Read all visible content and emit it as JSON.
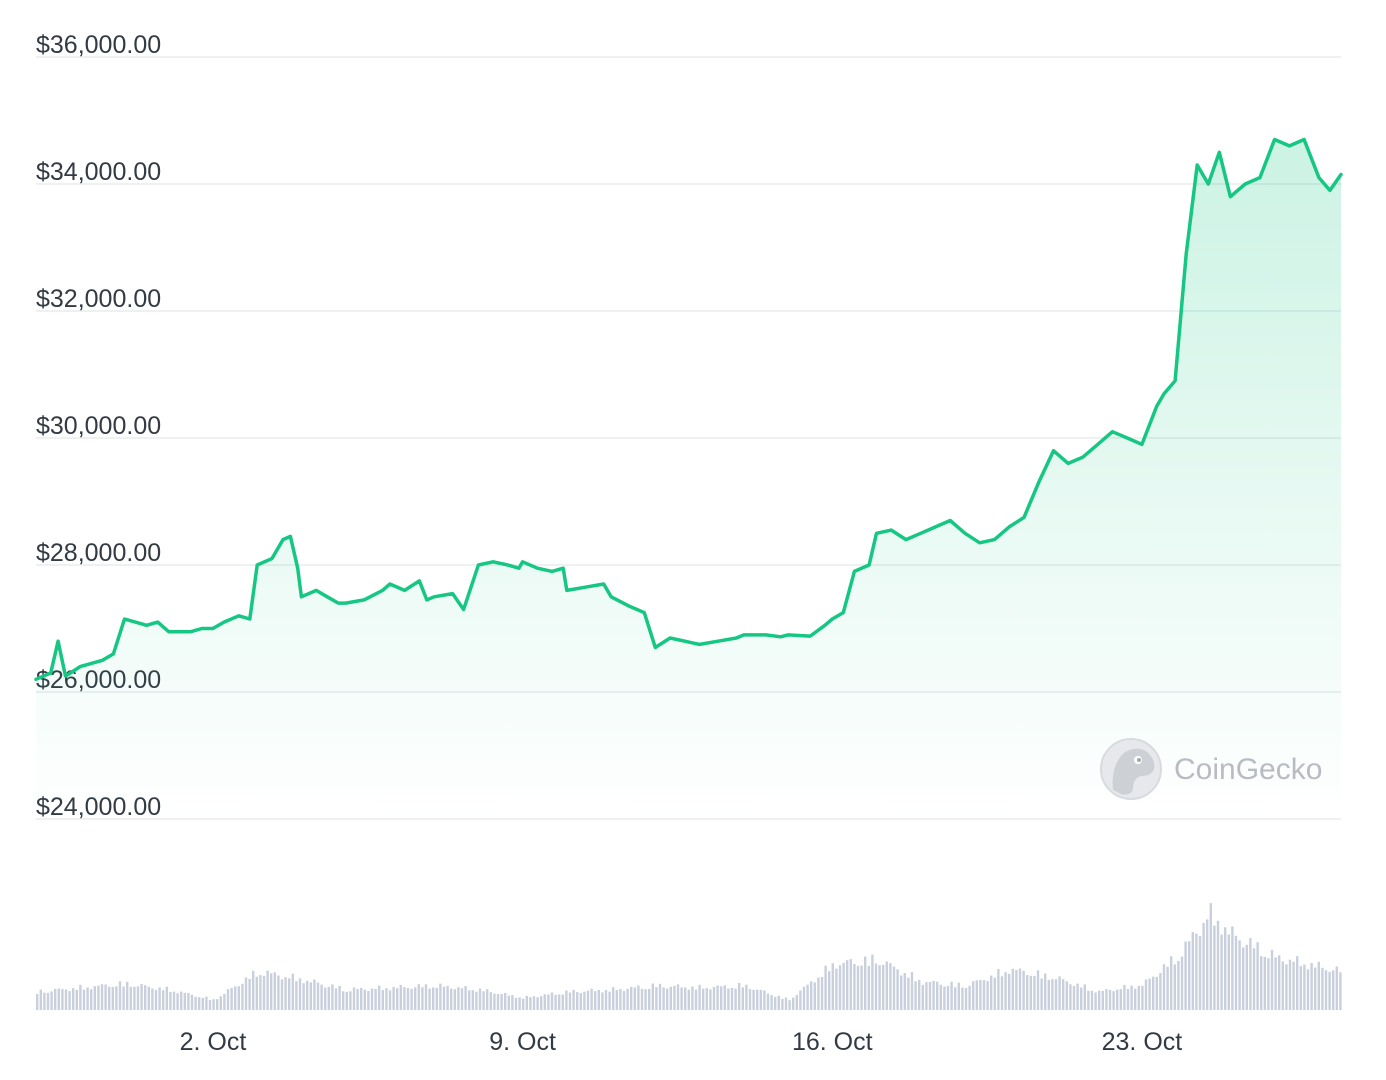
{
  "watermark": {
    "brand": "CoinGecko",
    "icon": "gecko-logo-icon"
  },
  "colors": {
    "line": "#16c784",
    "area_top": "#16c784",
    "volume": "#c9cfdc",
    "grid": "#eef0f2",
    "text": "#333a44"
  },
  "chart_data": [
    {
      "type": "area",
      "title": "",
      "xlabel": "",
      "ylabel": "",
      "ylim": [
        24000,
        36000
      ],
      "yticks": [
        {
          "value": 24000,
          "label": "$24,000.00"
        },
        {
          "value": 26000,
          "label": "$26,000.00"
        },
        {
          "value": 28000,
          "label": "$28,000.00"
        },
        {
          "value": 30000,
          "label": "$30,000.00"
        },
        {
          "value": 32000,
          "label": "$32,000.00"
        },
        {
          "value": 34000,
          "label": "$34,000.00"
        },
        {
          "value": 36000,
          "label": "$36,000.00"
        }
      ],
      "xlim": [
        "2023-09-28",
        "2023-10-27T12:00"
      ],
      "xticks": [
        {
          "value": "2023-10-02",
          "label": "2. Oct"
        },
        {
          "value": "2023-10-09",
          "label": "9. Oct"
        },
        {
          "value": "2023-10-16",
          "label": "16. Oct"
        },
        {
          "value": "2023-10-23",
          "label": "23. Oct"
        }
      ],
      "grid": true,
      "legend": "none",
      "series": [
        {
          "points": [
            [
              "2023-09-28T00:00",
              26200
            ],
            [
              "2023-09-28T08:00",
              26300
            ],
            [
              "2023-09-28T12:00",
              26800
            ],
            [
              "2023-09-28T16:00",
              26250
            ],
            [
              "2023-09-29T00:00",
              26400
            ],
            [
              "2023-09-29T12:00",
              26500
            ],
            [
              "2023-09-29T18:00",
              26600
            ],
            [
              "2023-09-30T00:00",
              27150
            ],
            [
              "2023-09-30T12:00",
              27050
            ],
            [
              "2023-09-30T18:00",
              27100
            ],
            [
              "2023-10-01T00:00",
              26950
            ],
            [
              "2023-10-01T12:00",
              26950
            ],
            [
              "2023-10-01T18:00",
              27000
            ],
            [
              "2023-10-02T00:00",
              27000
            ],
            [
              "2023-10-02T06:00",
              27100
            ],
            [
              "2023-10-02T14:00",
              27200
            ],
            [
              "2023-10-02T20:00",
              27150
            ],
            [
              "2023-10-03T00:00",
              28000
            ],
            [
              "2023-10-03T08:00",
              28100
            ],
            [
              "2023-10-03T14:00",
              28400
            ],
            [
              "2023-10-03T18:00",
              28450
            ],
            [
              "2023-10-03T22:00",
              27950
            ],
            [
              "2023-10-04T00:00",
              27500
            ],
            [
              "2023-10-04T08:00",
              27600
            ],
            [
              "2023-10-04T14:00",
              27500
            ],
            [
              "2023-10-04T20:00",
              27400
            ],
            [
              "2023-10-05T00:00",
              27400
            ],
            [
              "2023-10-05T10:00",
              27450
            ],
            [
              "2023-10-05T20:00",
              27600
            ],
            [
              "2023-10-06T00:00",
              27700
            ],
            [
              "2023-10-06T08:00",
              27600
            ],
            [
              "2023-10-06T16:00",
              27750
            ],
            [
              "2023-10-06T20:00",
              27450
            ],
            [
              "2023-10-07T00:00",
              27500
            ],
            [
              "2023-10-07T10:00",
              27550
            ],
            [
              "2023-10-07T16:00",
              27300
            ],
            [
              "2023-10-08T00:00",
              28000
            ],
            [
              "2023-10-08T08:00",
              28050
            ],
            [
              "2023-10-08T16:00",
              28000
            ],
            [
              "2023-10-08T22:00",
              27950
            ],
            [
              "2023-10-09T00:00",
              28050
            ],
            [
              "2023-10-09T08:00",
              27950
            ],
            [
              "2023-10-09T16:00",
              27900
            ],
            [
              "2023-10-09T22:00",
              27950
            ],
            [
              "2023-10-10T00:00",
              27600
            ],
            [
              "2023-10-10T10:00",
              27650
            ],
            [
              "2023-10-10T20:00",
              27700
            ],
            [
              "2023-10-11T00:00",
              27500
            ],
            [
              "2023-10-11T10:00",
              27350
            ],
            [
              "2023-10-11T18:00",
              27250
            ],
            [
              "2023-10-12T00:00",
              26700
            ],
            [
              "2023-10-12T08:00",
              26850
            ],
            [
              "2023-10-12T16:00",
              26800
            ],
            [
              "2023-10-13T00:00",
              26750
            ],
            [
              "2023-10-13T10:00",
              26800
            ],
            [
              "2023-10-13T20:00",
              26850
            ],
            [
              "2023-10-14T00:00",
              26900
            ],
            [
              "2023-10-14T12:00",
              26900
            ],
            [
              "2023-10-14T20:00",
              26870
            ],
            [
              "2023-10-15T00:00",
              26900
            ],
            [
              "2023-10-15T12:00",
              26880
            ],
            [
              "2023-10-15T20:00",
              27050
            ],
            [
              "2023-10-16T00:00",
              27150
            ],
            [
              "2023-10-16T06:00",
              27250
            ],
            [
              "2023-10-16T12:00",
              27900
            ],
            [
              "2023-10-16T20:00",
              28000
            ],
            [
              "2023-10-17T00:00",
              28500
            ],
            [
              "2023-10-17T08:00",
              28550
            ],
            [
              "2023-10-17T16:00",
              28400
            ],
            [
              "2023-10-18T00:00",
              28500
            ],
            [
              "2023-10-18T08:00",
              28600
            ],
            [
              "2023-10-18T16:00",
              28700
            ],
            [
              "2023-10-19T00:00",
              28500
            ],
            [
              "2023-10-19T08:00",
              28350
            ],
            [
              "2023-10-19T16:00",
              28400
            ],
            [
              "2023-10-20T00:00",
              28600
            ],
            [
              "2023-10-20T08:00",
              28750
            ],
            [
              "2023-10-20T16:00",
              29300
            ],
            [
              "2023-10-21T00:00",
              29800
            ],
            [
              "2023-10-21T08:00",
              29600
            ],
            [
              "2023-10-21T16:00",
              29700
            ],
            [
              "2023-10-22T00:00",
              29900
            ],
            [
              "2023-10-22T08:00",
              30100
            ],
            [
              "2023-10-22T16:00",
              30000
            ],
            [
              "2023-10-23T00:00",
              29900
            ],
            [
              "2023-10-23T08:00",
              30500
            ],
            [
              "2023-10-23T12:00",
              30700
            ],
            [
              "2023-10-23T18:00",
              30900
            ],
            [
              "2023-10-24T00:00",
              32900
            ],
            [
              "2023-10-24T06:00",
              34300
            ],
            [
              "2023-10-24T12:00",
              34000
            ],
            [
              "2023-10-24T18:00",
              34500
            ],
            [
              "2023-10-25T00:00",
              33800
            ],
            [
              "2023-10-25T08:00",
              34000
            ],
            [
              "2023-10-25T16:00",
              34100
            ],
            [
              "2023-10-26T00:00",
              34700
            ],
            [
              "2023-10-26T08:00",
              34600
            ],
            [
              "2023-10-26T16:00",
              34700
            ],
            [
              "2023-10-27T00:00",
              34100
            ],
            [
              "2023-10-27T06:00",
              33900
            ],
            [
              "2023-10-27T12:00",
              34150
            ]
          ]
        }
      ]
    },
    {
      "type": "bar",
      "title": "",
      "xlabel": "",
      "ylabel": "",
      "axis_labels_shown": false,
      "ylim": [
        0,
        100
      ],
      "volume_profile": [
        [
          "2023-09-28T00:00",
          18
        ],
        [
          "2023-09-29T00:00",
          22
        ],
        [
          "2023-09-30T00:00",
          26
        ],
        [
          "2023-10-01T00:00",
          20
        ],
        [
          "2023-10-02T00:00",
          10
        ],
        [
          "2023-10-03T00:00",
          38
        ],
        [
          "2023-10-04T00:00",
          30
        ],
        [
          "2023-10-05T00:00",
          20
        ],
        [
          "2023-10-06T00:00",
          22
        ],
        [
          "2023-10-07T00:00",
          24
        ],
        [
          "2023-10-08T00:00",
          20
        ],
        [
          "2023-10-09T00:00",
          12
        ],
        [
          "2023-10-10T00:00",
          18
        ],
        [
          "2023-10-11T00:00",
          20
        ],
        [
          "2023-10-12T00:00",
          24
        ],
        [
          "2023-10-13T00:00",
          22
        ],
        [
          "2023-10-14T00:00",
          24
        ],
        [
          "2023-10-15T00:00",
          10
        ],
        [
          "2023-10-16T00:00",
          45
        ],
        [
          "2023-10-17T00:00",
          50
        ],
        [
          "2023-10-18T00:00",
          28
        ],
        [
          "2023-10-19T00:00",
          24
        ],
        [
          "2023-10-20T00:00",
          40
        ],
        [
          "2023-10-21T00:00",
          32
        ],
        [
          "2023-10-22T00:00",
          18
        ],
        [
          "2023-10-23T00:00",
          25
        ],
        [
          "2023-10-23T20:00",
          55
        ],
        [
          "2023-10-24T12:00",
          95
        ],
        [
          "2023-10-25T00:00",
          75
        ],
        [
          "2023-10-26T00:00",
          52
        ],
        [
          "2023-10-27T12:00",
          38
        ]
      ]
    }
  ]
}
